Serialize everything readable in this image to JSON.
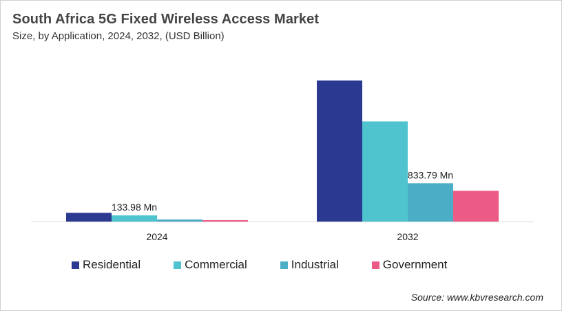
{
  "chart_data": {
    "type": "bar",
    "title": "South Africa 5G Fixed Wireless Access Market",
    "subtitle": "Size, by Application, 2024, 2032, (USD Billion)",
    "categories": [
      "2024",
      "2032"
    ],
    "series": [
      {
        "name": "Residential",
        "color": "#2B3990",
        "values": [
          0.19,
          3.07
        ]
      },
      {
        "name": "Commercial",
        "color": "#4FC4CF",
        "values": [
          0.134,
          2.18
        ]
      },
      {
        "name": "Industrial",
        "color": "#4BAEC6",
        "values": [
          0.045,
          0.834
        ]
      },
      {
        "name": "Government",
        "color": "#EC5B86",
        "values": [
          0.03,
          0.67
        ]
      }
    ],
    "data_labels": [
      {
        "category": "2024",
        "series": "Commercial",
        "text": "133.98 Mn"
      },
      {
        "category": "2032",
        "series": "Industrial",
        "text": "833.79 Mn"
      }
    ],
    "ylim": [
      0,
      3.25
    ],
    "grid": false,
    "legend": "bottom",
    "source": "Source: www.kbvresearch.com"
  }
}
